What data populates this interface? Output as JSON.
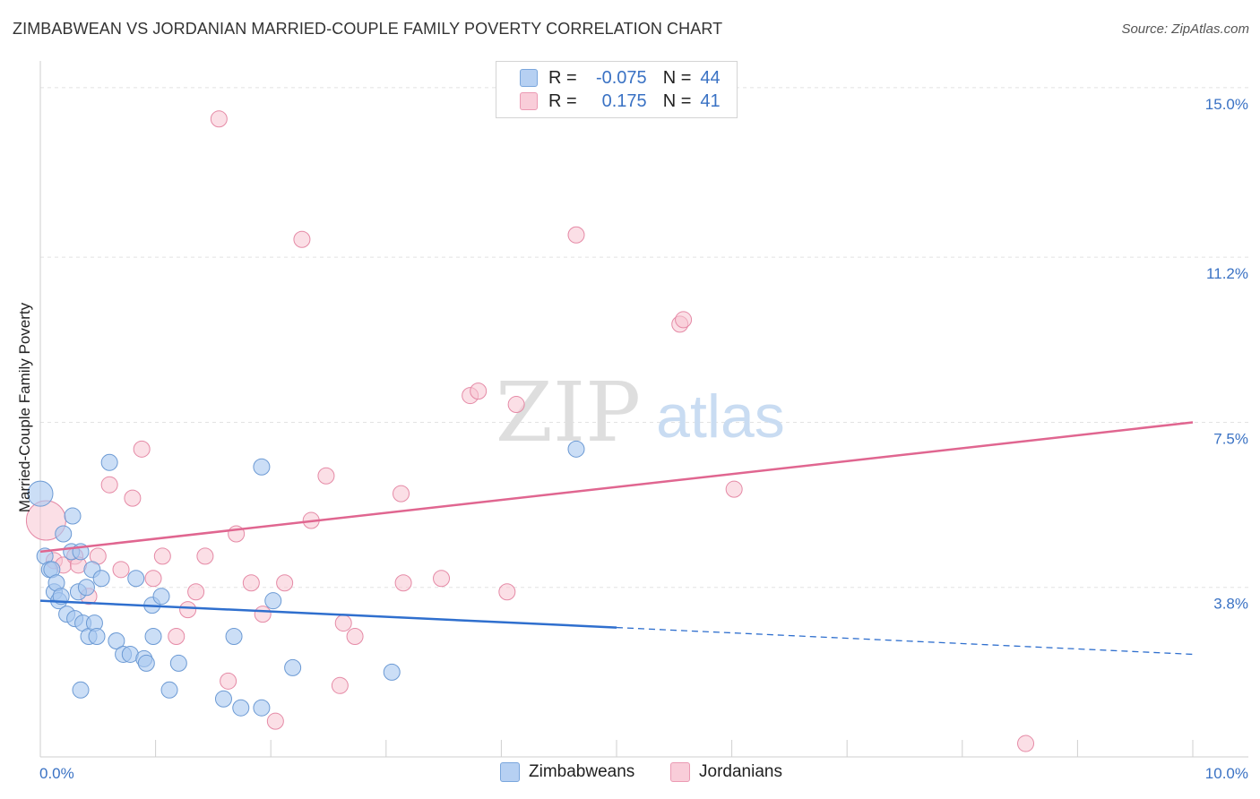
{
  "title": "ZIMBABWEAN VS JORDANIAN MARRIED-COUPLE FAMILY POVERTY CORRELATION CHART",
  "source": "Source: ZipAtlas.com",
  "watermark": {
    "zip": "ZIP",
    "atlas": "atlas"
  },
  "legend": {
    "rows": [
      {
        "r_label": "R =",
        "r_value": "-0.075",
        "n_label": "N =",
        "n_value": "44"
      },
      {
        "r_label": "R =",
        "r_value": "0.175",
        "n_label": "N =",
        "n_value": "41"
      }
    ]
  },
  "chart_data": {
    "type": "scatter",
    "title": "ZIMBABWEAN VS JORDANIAN MARRIED-COUPLE FAMILY POVERTY CORRELATION CHART",
    "xlabel": "",
    "ylabel": "Married-Couple Family Poverty",
    "xlim": [
      0,
      10
    ],
    "ylim": [
      0,
      15.4
    ],
    "x_tick_labels": [
      "0.0%",
      "10.0%"
    ],
    "y_ticks": [
      3.8,
      7.5,
      11.2,
      15.0
    ],
    "y_tick_labels": [
      "3.8%",
      "7.5%",
      "11.2%",
      "15.0%"
    ],
    "grid": true,
    "series": [
      {
        "name": "Zimbabweans",
        "color": "#a8c8f0",
        "stroke": "#6c9ad4",
        "line_color": "#2f6fce",
        "r": -0.075,
        "n": 44,
        "trend": {
          "x0": 0,
          "y0": 3.5,
          "x1": 5.0,
          "y1": 2.9,
          "dash_x1": 10,
          "dash_y1": 2.3
        },
        "points": [
          [
            0.0,
            5.9
          ],
          [
            0.04,
            4.5
          ],
          [
            0.08,
            4.2
          ],
          [
            0.1,
            4.2
          ],
          [
            0.12,
            3.7
          ],
          [
            0.14,
            3.9
          ],
          [
            0.16,
            3.5
          ],
          [
            0.18,
            3.6
          ],
          [
            0.2,
            5.0
          ],
          [
            0.23,
            3.2
          ],
          [
            0.27,
            4.6
          ],
          [
            0.28,
            5.4
          ],
          [
            0.3,
            3.1
          ],
          [
            0.33,
            3.7
          ],
          [
            0.35,
            4.6
          ],
          [
            0.37,
            3.0
          ],
          [
            0.4,
            3.8
          ],
          [
            0.42,
            2.7
          ],
          [
            0.45,
            4.2
          ],
          [
            0.47,
            3.0
          ],
          [
            0.49,
            2.7
          ],
          [
            0.53,
            4.0
          ],
          [
            0.6,
            6.6
          ],
          [
            0.66,
            2.6
          ],
          [
            0.72,
            2.3
          ],
          [
            0.78,
            2.3
          ],
          [
            0.83,
            4.0
          ],
          [
            0.9,
            2.2
          ],
          [
            0.92,
            2.1
          ],
          [
            0.97,
            3.4
          ],
          [
            0.98,
            2.7
          ],
          [
            1.05,
            3.6
          ],
          [
            1.12,
            1.5
          ],
          [
            1.2,
            2.1
          ],
          [
            1.59,
            1.3
          ],
          [
            1.68,
            2.7
          ],
          [
            1.74,
            1.1
          ],
          [
            1.92,
            1.1
          ],
          [
            1.92,
            6.5
          ],
          [
            2.02,
            3.5
          ],
          [
            2.19,
            2.0
          ],
          [
            3.05,
            1.9
          ],
          [
            4.65,
            6.9
          ],
          [
            0.35,
            1.5
          ]
        ]
      },
      {
        "name": "Jordanians",
        "color": "#f8c4d2",
        "stroke": "#e58aa6",
        "line_color": "#e06690",
        "r": 0.175,
        "n": 41,
        "trend": {
          "x0": 0,
          "y0": 4.6,
          "x1": 10,
          "y1": 7.5
        },
        "points": [
          [
            0.05,
            5.3
          ],
          [
            0.12,
            4.4
          ],
          [
            0.2,
            4.3
          ],
          [
            0.3,
            4.5
          ],
          [
            0.33,
            4.3
          ],
          [
            0.42,
            3.6
          ],
          [
            0.5,
            4.5
          ],
          [
            0.6,
            6.1
          ],
          [
            0.7,
            4.2
          ],
          [
            0.8,
            5.8
          ],
          [
            0.88,
            6.9
          ],
          [
            0.98,
            4.0
          ],
          [
            1.06,
            4.5
          ],
          [
            1.18,
            2.7
          ],
          [
            1.28,
            3.3
          ],
          [
            1.35,
            3.7
          ],
          [
            1.43,
            4.5
          ],
          [
            1.63,
            1.7
          ],
          [
            1.7,
            5.0
          ],
          [
            1.83,
            3.9
          ],
          [
            1.93,
            3.2
          ],
          [
            2.04,
            0.8
          ],
          [
            2.12,
            3.9
          ],
          [
            2.27,
            11.6
          ],
          [
            2.35,
            5.3
          ],
          [
            2.48,
            6.3
          ],
          [
            2.6,
            1.6
          ],
          [
            2.63,
            3.0
          ],
          [
            2.73,
            2.7
          ],
          [
            3.13,
            5.9
          ],
          [
            3.15,
            3.9
          ],
          [
            3.48,
            4.0
          ],
          [
            3.73,
            8.1
          ],
          [
            3.8,
            8.2
          ],
          [
            4.05,
            3.7
          ],
          [
            4.13,
            7.9
          ],
          [
            4.65,
            11.7
          ],
          [
            5.55,
            9.7
          ],
          [
            5.58,
            9.8
          ],
          [
            6.02,
            6.0
          ],
          [
            8.55,
            0.3
          ]
        ],
        "extra_points": [
          [
            1.55,
            14.3
          ]
        ]
      }
    ]
  }
}
